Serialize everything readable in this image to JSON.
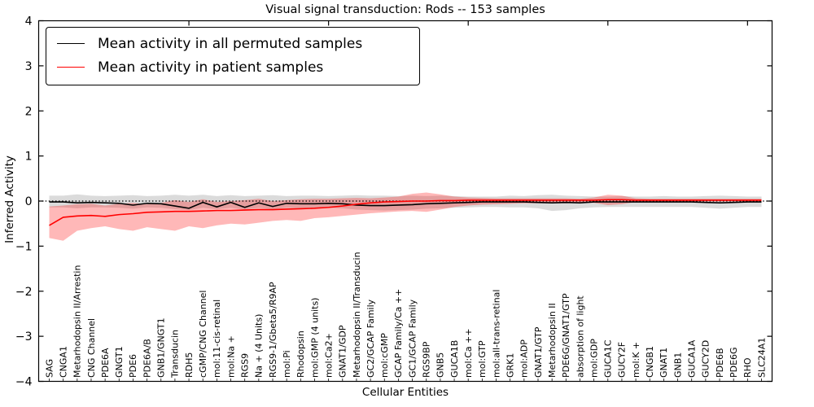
{
  "title": "Visual signal transduction: Rods -- 153 samples",
  "axes": {
    "ylabel": "Inferred Activity",
    "xlabel": "Cellular Entities",
    "yticks": [
      "4",
      "3",
      "2",
      "1",
      "0",
      "−1",
      "−2",
      "−3",
      "−4"
    ]
  },
  "legend": {
    "position": "upper left",
    "entries": [
      {
        "label": "Mean activity in all permuted samples",
        "color": "#000000"
      },
      {
        "label": "Mean activity in patient samples",
        "color": "#ff0000"
      }
    ]
  },
  "chart_data": {
    "type": "line",
    "title": "Visual signal transduction: Rods -- 153 samples",
    "xlabel": "Cellular Entities",
    "ylabel": "Inferred Activity",
    "ylim": [
      -4,
      4
    ],
    "grid": false,
    "legend_position": "upper left",
    "reference_line": {
      "y": 0,
      "style": "dotted",
      "color": "#000000"
    },
    "categories": [
      "SAG",
      "CNGA1",
      "Metarhodopsin II/Arrestin",
      "CNG Channel",
      "PDE6A",
      "GNGT1",
      "PDE6",
      "PDE6A/B",
      "GNB1/GNGT1",
      "Transducin",
      "RDH5",
      "cGMP/CNG Channel",
      "mol:11-cis-retinal",
      "mol:Na +",
      "RGS9",
      "Na + (4 Units)",
      "RGS9-1/Gbeta5/R9AP",
      "mol:Pi",
      "Rhodopsin",
      "mol:GMP (4 units)",
      "mol:Ca2+",
      "GNAT1/GDP",
      "Metarhodopsin II/Transducin",
      "GC2/GCAP Family",
      "mol:cGMP",
      "GCAP Family/Ca ++",
      "GC1/GCAP Family",
      "RGS9BP",
      "GNB5",
      "GUCA1B",
      "mol:Ca ++",
      "mol:GTP",
      "mol:all-trans-retinal",
      "GRK1",
      "mol:ADP",
      "GNAT1/GTP",
      "Metarhodopsin II",
      "PDE6G/GNAT1/GTP",
      "absorption of light",
      "mol:GDP",
      "GUCA1C",
      "GUCY2F",
      "mol:K +",
      "CNGB1",
      "GNAT1",
      "GNB1",
      "GUCA1A",
      "GUCY2D",
      "PDE6B",
      "PDE6G",
      "RHO",
      "SLC24A1"
    ],
    "series": [
      {
        "key": "permuted-mean",
        "name": "Mean activity in all permuted samples",
        "color": "#000000",
        "values": [
          -0.02,
          -0.02,
          -0.04,
          -0.03,
          -0.04,
          -0.05,
          -0.09,
          -0.05,
          -0.06,
          -0.11,
          -0.16,
          -0.03,
          -0.13,
          -0.03,
          -0.14,
          -0.04,
          -0.12,
          -0.05,
          -0.06,
          -0.06,
          -0.05,
          -0.06,
          -0.09,
          -0.1,
          -0.1,
          -0.09,
          -0.08,
          -0.06,
          -0.05,
          -0.04,
          -0.03,
          -0.02,
          -0.02,
          -0.02,
          -0.02,
          -0.03,
          -0.04,
          -0.03,
          -0.04,
          -0.02,
          -0.02,
          -0.02,
          -0.02,
          -0.02,
          -0.02,
          -0.02,
          -0.02,
          -0.03,
          -0.04,
          -0.03,
          -0.02,
          -0.02
        ]
      },
      {
        "key": "patient-mean",
        "name": "Mean activity in patient samples",
        "color": "#ff0000",
        "values": [
          -0.54,
          -0.36,
          -0.33,
          -0.32,
          -0.34,
          -0.3,
          -0.28,
          -0.25,
          -0.24,
          -0.23,
          -0.23,
          -0.22,
          -0.21,
          -0.21,
          -0.2,
          -0.19,
          -0.19,
          -0.18,
          -0.17,
          -0.16,
          -0.14,
          -0.11,
          -0.07,
          -0.04,
          -0.02,
          -0.01,
          0.0,
          0.0,
          0.01,
          0.01,
          0.02,
          0.02,
          0.02,
          0.02,
          0.02,
          0.02,
          0.02,
          0.02,
          0.02,
          0.02,
          0.03,
          0.03,
          0.02,
          0.02,
          0.02,
          0.02,
          0.02,
          0.02,
          0.02,
          0.02,
          0.02,
          0.02
        ]
      }
    ],
    "bands": [
      {
        "key": "permuted-range",
        "color": "#999999",
        "opacity": 0.35,
        "upper": [
          0.12,
          0.12,
          0.15,
          0.12,
          0.11,
          0.12,
          0.13,
          0.11,
          0.12,
          0.14,
          0.12,
          0.14,
          0.11,
          0.13,
          0.11,
          0.12,
          0.13,
          0.11,
          0.12,
          0.12,
          0.11,
          0.12,
          0.13,
          0.12,
          0.12,
          0.11,
          0.12,
          0.11,
          0.12,
          0.11,
          0.1,
          0.1,
          0.1,
          0.12,
          0.11,
          0.13,
          0.14,
          0.12,
          0.11,
          0.1,
          0.1,
          0.11,
          0.1,
          0.1,
          0.11,
          0.1,
          0.1,
          0.11,
          0.12,
          0.11,
          0.1,
          0.1
        ],
        "lower": [
          -0.14,
          -0.14,
          -0.16,
          -0.14,
          -0.14,
          -0.15,
          -0.17,
          -0.14,
          -0.15,
          -0.18,
          -0.2,
          -0.15,
          -0.18,
          -0.15,
          -0.19,
          -0.15,
          -0.18,
          -0.15,
          -0.16,
          -0.16,
          -0.15,
          -0.16,
          -0.19,
          -0.2,
          -0.21,
          -0.2,
          -0.19,
          -0.17,
          -0.16,
          -0.15,
          -0.14,
          -0.13,
          -0.13,
          -0.14,
          -0.14,
          -0.16,
          -0.22,
          -0.2,
          -0.16,
          -0.14,
          -0.13,
          -0.13,
          -0.13,
          -0.13,
          -0.13,
          -0.13,
          -0.13,
          -0.15,
          -0.17,
          -0.15,
          -0.13,
          -0.13
        ]
      },
      {
        "key": "patient-range",
        "color": "#ff0000",
        "opacity": 0.28,
        "upper": [
          -0.12,
          -0.1,
          -0.07,
          -0.06,
          -0.1,
          -0.06,
          -0.04,
          -0.07,
          -0.04,
          0.02,
          -0.02,
          0.04,
          -0.02,
          0.0,
          0.02,
          0.05,
          0.0,
          0.02,
          0.04,
          0.05,
          0.05,
          0.06,
          0.07,
          0.06,
          0.08,
          0.1,
          0.16,
          0.19,
          0.15,
          0.1,
          0.08,
          0.07,
          0.06,
          0.06,
          0.06,
          0.06,
          0.06,
          0.06,
          0.05,
          0.08,
          0.14,
          0.12,
          0.06,
          0.05,
          0.05,
          0.05,
          0.05,
          0.05,
          0.05,
          0.05,
          0.05,
          0.05
        ],
        "lower": [
          -0.82,
          -0.88,
          -0.66,
          -0.6,
          -0.56,
          -0.62,
          -0.66,
          -0.58,
          -0.62,
          -0.66,
          -0.56,
          -0.6,
          -0.54,
          -0.5,
          -0.52,
          -0.48,
          -0.44,
          -0.42,
          -0.44,
          -0.38,
          -0.36,
          -0.33,
          -0.3,
          -0.27,
          -0.25,
          -0.23,
          -0.22,
          -0.24,
          -0.19,
          -0.13,
          -0.1,
          -0.08,
          -0.07,
          -0.06,
          -0.05,
          -0.05,
          -0.05,
          -0.05,
          -0.04,
          -0.04,
          -0.09,
          -0.07,
          -0.02,
          -0.01,
          -0.01,
          -0.01,
          -0.01,
          -0.01,
          -0.01,
          -0.01,
          -0.01,
          -0.01
        ]
      }
    ]
  }
}
